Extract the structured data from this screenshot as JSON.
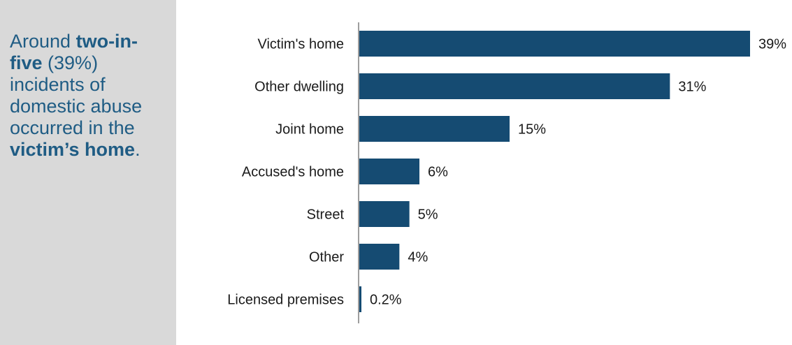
{
  "callout": {
    "t1": "Around ",
    "b1": "two-in-five",
    "t2": " (39%) incidents of domestic abuse occurred in the ",
    "b2": "victim’s home",
    "t3": "."
  },
  "colors": {
    "bar": "#154b72",
    "callout_bg": "#d9d9d9",
    "callout_text": "#1f5c84",
    "axis": "#7f7f7f"
  },
  "chart_data": {
    "type": "bar",
    "orientation": "horizontal",
    "categories": [
      "Victim's home",
      "Other dwelling",
      "Joint home",
      "Accused's home",
      "Street",
      "Other",
      "Licensed premises"
    ],
    "values": [
      39,
      31,
      15,
      6,
      5,
      4,
      0.2
    ],
    "value_labels": [
      "39%",
      "31%",
      "15%",
      "6%",
      "5%",
      "4%",
      "0.2%"
    ],
    "xlim": [
      0,
      39
    ],
    "grid": false,
    "legend": "none"
  }
}
